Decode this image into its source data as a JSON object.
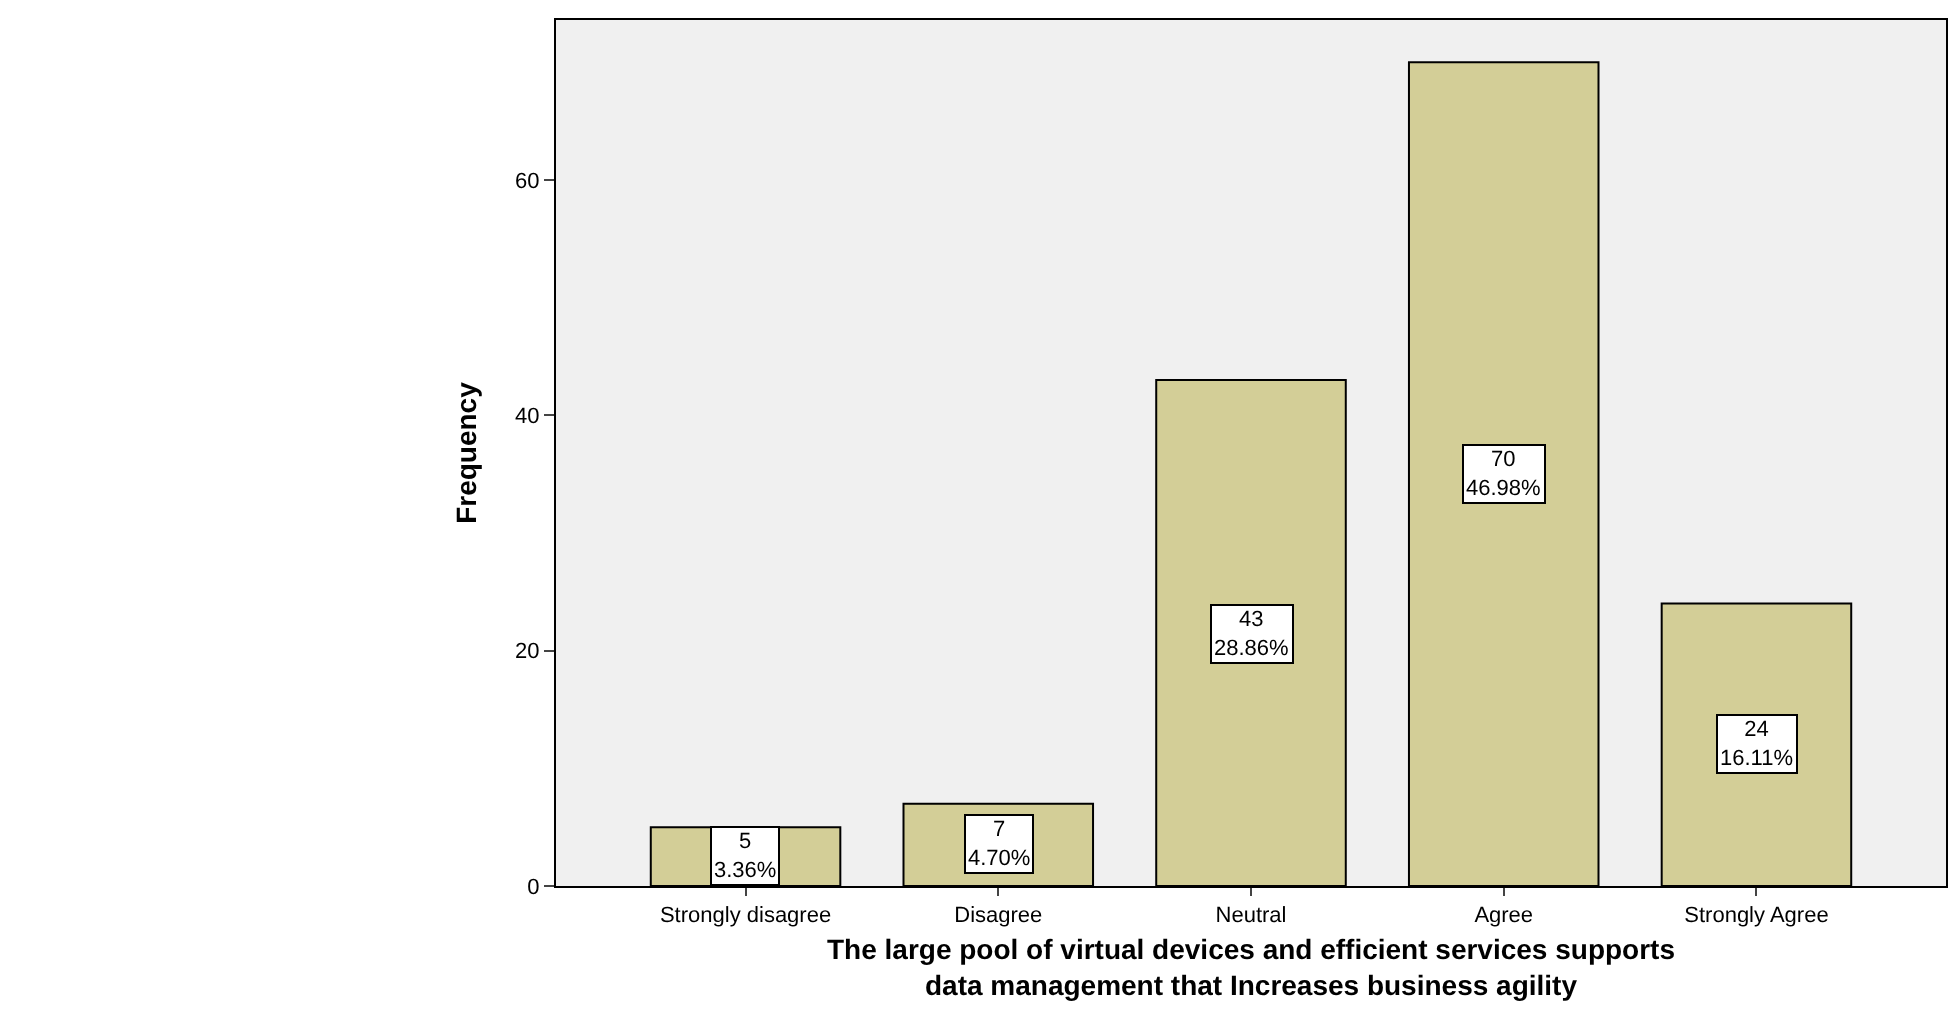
{
  "chart_data": {
    "type": "bar",
    "xlabel": "The large pool of virtual devices and efficient services supports data management that Increases business agility",
    "ylabel": "Frequency",
    "categories": [
      "Strongly disagree",
      "Disagree",
      "Neutral",
      "Agree",
      "Strongly Agree"
    ],
    "values": [
      5,
      7,
      43,
      70,
      24
    ],
    "value_labels": [
      "5\n3.36%",
      "7\n4.70%",
      "43\n28.86%",
      "70\n46.98%",
      "24\n16.11%"
    ],
    "color": "#d3ce97",
    "ylim": [
      0,
      73.6
    ],
    "yticks": [
      0,
      20,
      40,
      60
    ],
    "grid": false,
    "legend": false
  }
}
